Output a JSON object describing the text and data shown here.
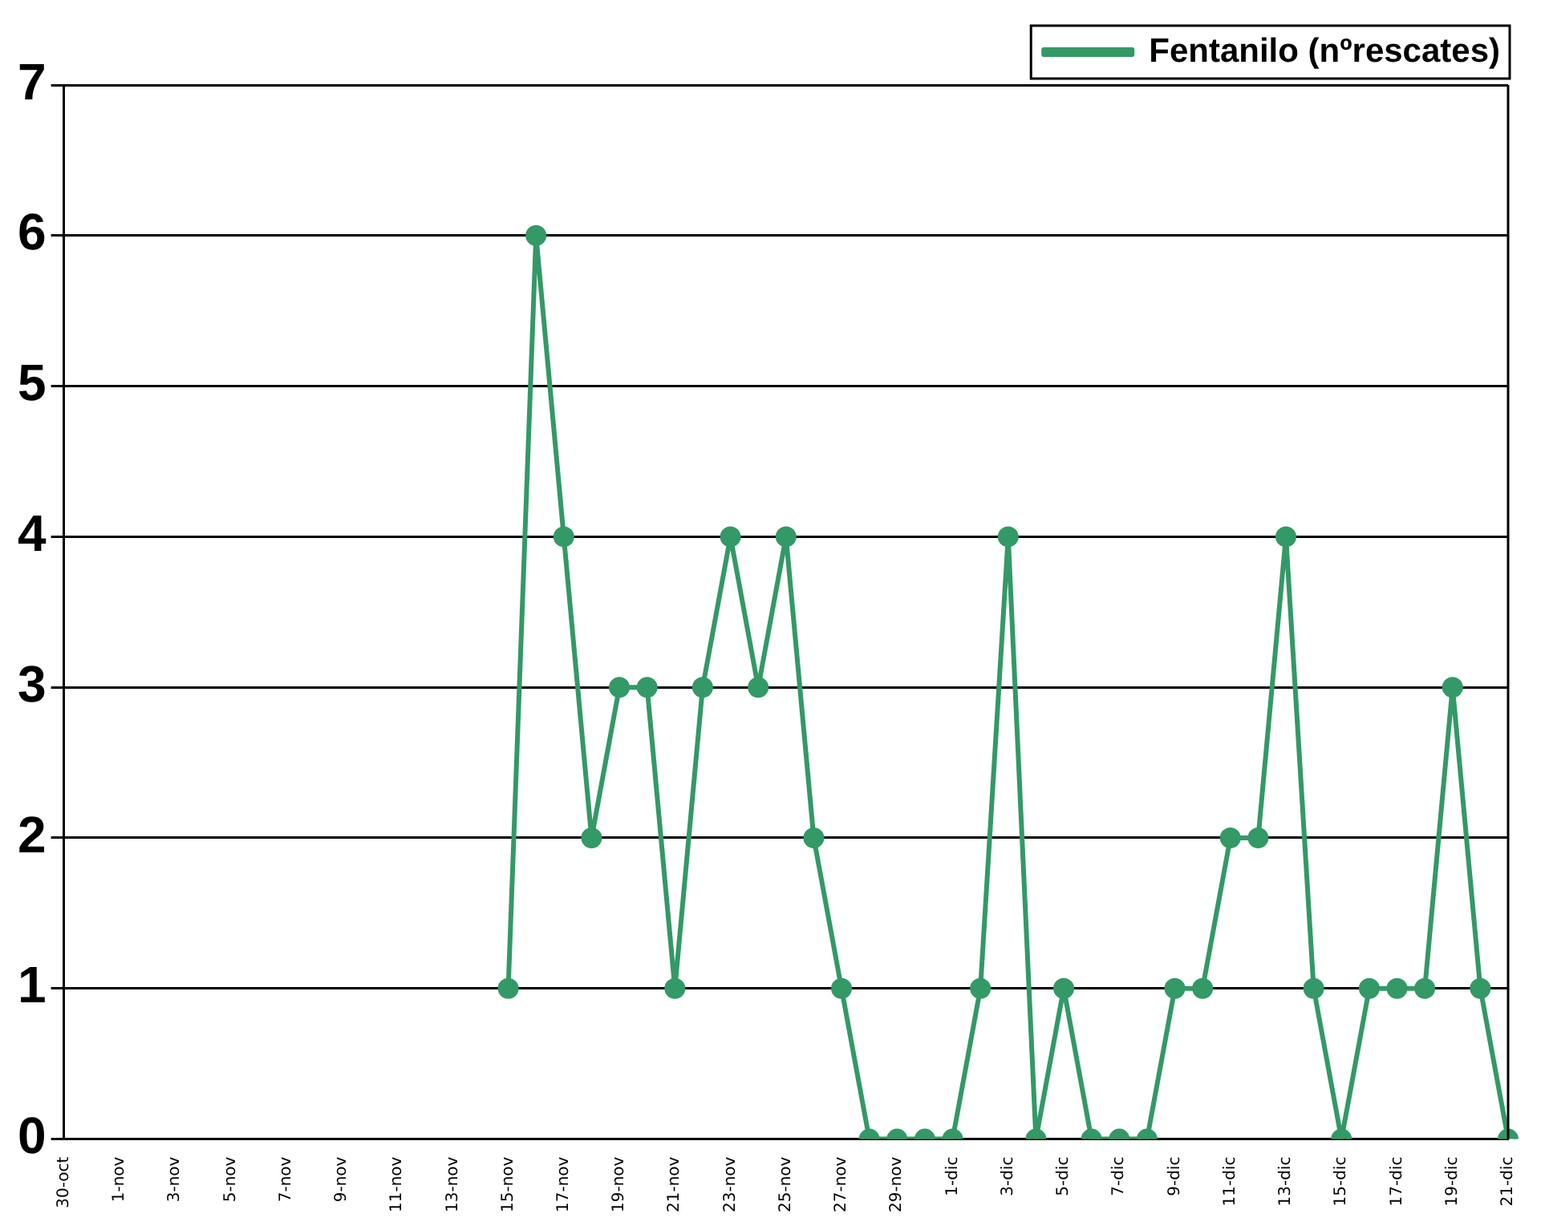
{
  "chart_data": {
    "type": "line",
    "categories": [
      "30-oct",
      null,
      "1-nov",
      null,
      "3-nov",
      null,
      "5-nov",
      null,
      "7-nov",
      null,
      "9-nov",
      null,
      "11-nov",
      null,
      "13-nov",
      null,
      "15-nov",
      null,
      "17-nov",
      null,
      "19-nov",
      null,
      "21-nov",
      null,
      "23-nov",
      null,
      "25-nov",
      null,
      "27-nov",
      null,
      "29-nov",
      null,
      "1-dic",
      null,
      "3-dic",
      null,
      "5-dic",
      null,
      "7-dic",
      null,
      "9-dic",
      null,
      "11-dic",
      null,
      "13-dic",
      null,
      "15-dic",
      null,
      "17-dic",
      null,
      "19-dic",
      null,
      "21-dic"
    ],
    "series": [
      {
        "name": "Fentanilo (nºrescates)",
        "color": "#339966",
        "values": [
          null,
          null,
          null,
          null,
          null,
          null,
          null,
          null,
          null,
          null,
          null,
          null,
          null,
          null,
          null,
          null,
          1,
          6,
          4,
          2,
          3,
          3,
          1,
          3,
          4,
          3,
          4,
          2,
          1,
          0,
          0,
          0,
          0,
          1,
          4,
          0,
          1,
          0,
          0,
          0,
          1,
          1,
          2,
          2,
          4,
          1,
          0,
          1,
          1,
          1,
          3,
          1,
          0
        ]
      }
    ],
    "ylim": [
      0,
      7
    ],
    "yticks": [
      0,
      1,
      2,
      3,
      4,
      5,
      6,
      7
    ],
    "grid": "y",
    "legend": "top right",
    "marker": "circle",
    "line_style": "solid"
  }
}
